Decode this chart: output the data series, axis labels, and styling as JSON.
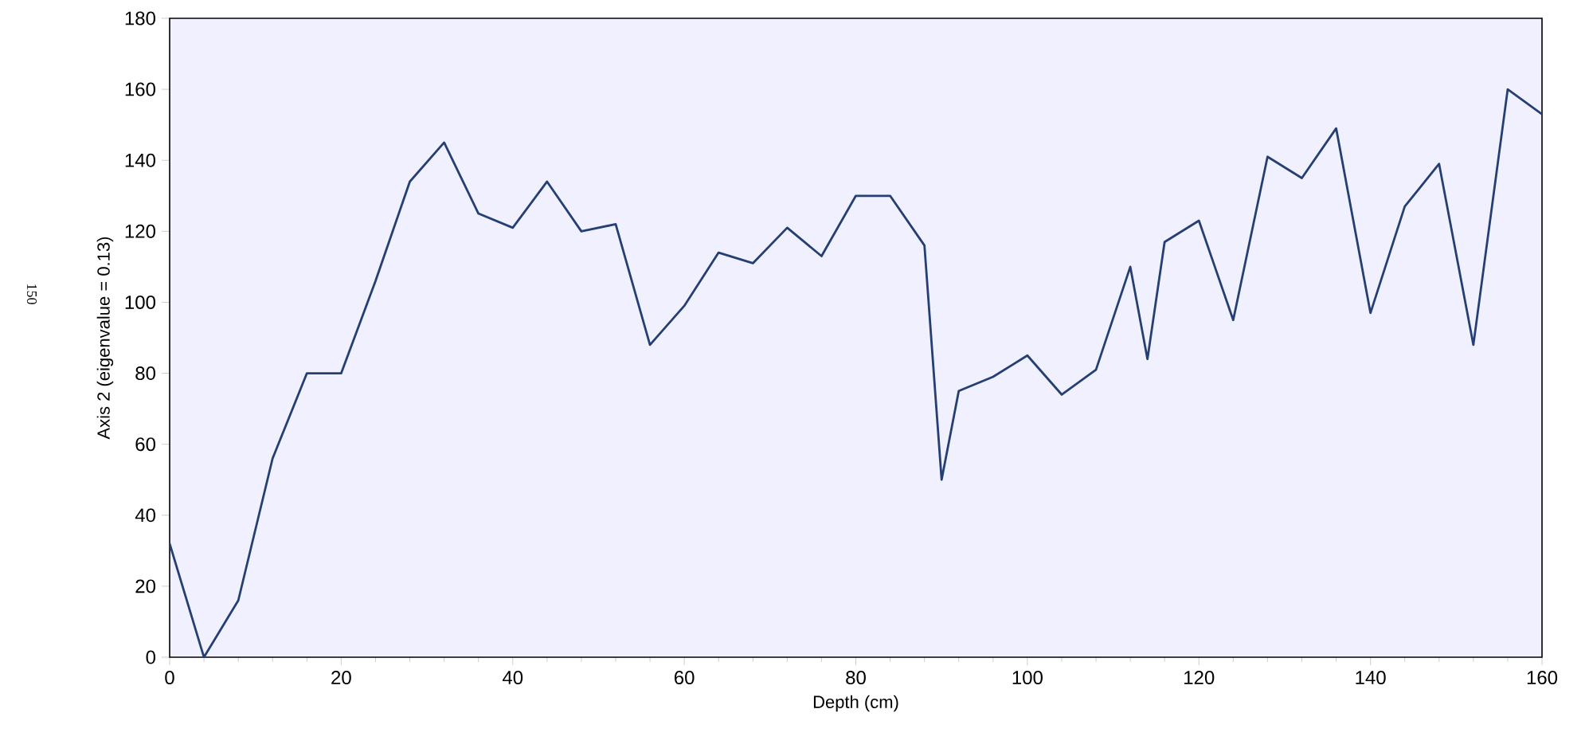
{
  "chart_data": {
    "type": "line",
    "xlabel": "Depth (cm)",
    "ylabel": "Axis 2 (eigenvalue = 0.13)",
    "annotations": [
      "150"
    ],
    "x": [
      0,
      4,
      8,
      12,
      16,
      20,
      24,
      28,
      32,
      36,
      40,
      44,
      48,
      52,
      56,
      60,
      64,
      68,
      72,
      76,
      80,
      84,
      88,
      90,
      92,
      96,
      100,
      104,
      108,
      112,
      114,
      116,
      120,
      124,
      128,
      132,
      136,
      140,
      144,
      148,
      152,
      156,
      160
    ],
    "series": [
      {
        "color": "#253f73",
        "values": [
          32,
          0,
          16,
          56,
          80,
          80,
          106,
          134,
          145,
          125,
          121,
          134,
          120,
          122,
          88,
          99,
          114,
          111,
          121,
          113,
          130,
          130,
          116,
          50,
          75,
          79,
          85,
          74,
          81,
          110,
          84,
          117,
          123,
          95,
          141,
          135,
          149,
          97,
          127,
          139,
          88,
          160,
          153
        ]
      }
    ],
    "xlim": [
      0,
      160
    ],
    "ylim": [
      0,
      180
    ],
    "xticks": [
      0,
      20,
      40,
      60,
      80,
      100,
      120,
      140,
      160
    ],
    "yticks": [
      0,
      20,
      40,
      60,
      80,
      100,
      120,
      140,
      160,
      180
    ],
    "grid": false,
    "marker": "none",
    "line_style": "solid"
  }
}
